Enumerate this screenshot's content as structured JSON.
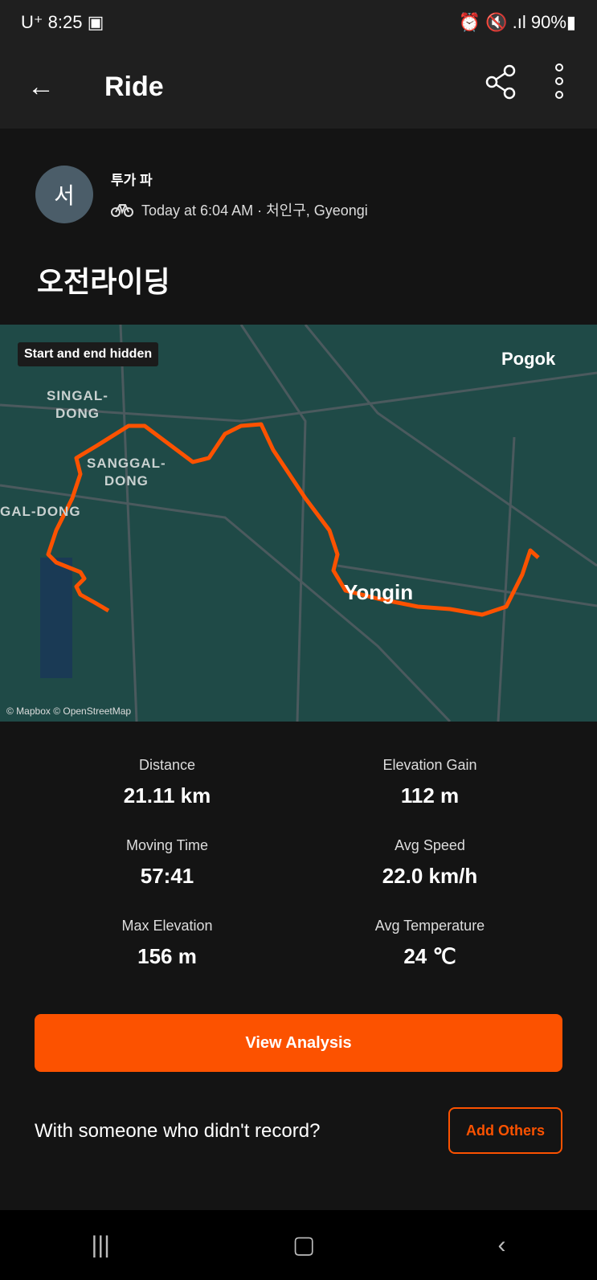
{
  "status_bar": {
    "carrier": "U⁺",
    "time": "8:25",
    "battery": "90%"
  },
  "header": {
    "title": "Ride"
  },
  "athlete": {
    "avatar_initial": "서",
    "name": "투가 파",
    "date_location": "Today at 6:04 AM · 처인구, Gyeongi"
  },
  "activity": {
    "title": "오전라이딩",
    "sport_icon": "bike-icon"
  },
  "map": {
    "privacy_label": "Start and end hidden",
    "places": [
      "SINGAL-\nDONG",
      "SANGGAL-\nDONG",
      "GAL-DONG",
      "Pogok",
      "Yongin"
    ],
    "attribution": "© Mapbox © OpenStreetMap",
    "route_color": "#fc5200"
  },
  "stats": [
    {
      "label": "Distance",
      "value": "21.11 km"
    },
    {
      "label": "Elevation Gain",
      "value": "112 m"
    },
    {
      "label": "Moving Time",
      "value": "57:41"
    },
    {
      "label": "Avg Speed",
      "value": "22.0 km/h"
    },
    {
      "label": "Max Elevation",
      "value": "156 m"
    },
    {
      "label": "Avg Temperature",
      "value": "24 ℃"
    }
  ],
  "actions": {
    "view_analysis": "View Analysis",
    "with_someone": "With someone who didn't record?",
    "add_others": "Add Others"
  },
  "accent_color": "#fc5200"
}
